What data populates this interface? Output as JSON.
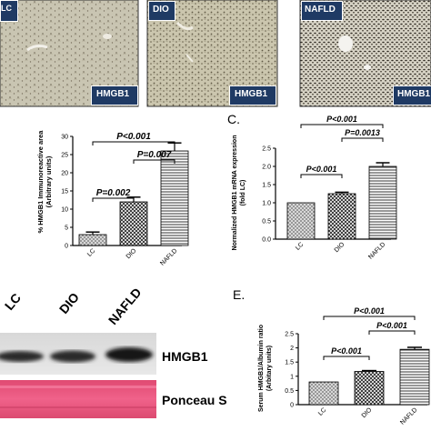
{
  "panel_a": {
    "images": [
      {
        "tag": "LC",
        "label": "HMGB1",
        "tissue": "#c9c5b2",
        "stain": "#6d6553"
      },
      {
        "tag": "DIO",
        "label": "HMGB1",
        "tissue": "#cbc6ae",
        "stain": "#5f5844"
      },
      {
        "tag": "NAFLD",
        "label": "HMGB1",
        "tissue": "#d6d2c4",
        "stain": "#2f2a22"
      }
    ]
  },
  "panel_b": {
    "letter": "",
    "ylabel_lines": [
      "% HMGB1 Immunoreactive area",
      "(Arbitrary units)"
    ],
    "sig": [
      "P<0.001",
      "P=0.007",
      "P=0.002"
    ]
  },
  "panel_c": {
    "letter": "C.",
    "ylabel_lines": [
      "Normalized HMGB1 mRNA expression",
      "(fold LC)"
    ],
    "sig": [
      "P<0.001",
      "P=0.0013",
      "P<0.001"
    ]
  },
  "panel_d": {
    "letter": "",
    "lanes": [
      "LC",
      "DIO",
      "NAFLD"
    ],
    "band_labels": [
      "HMGB1",
      "Ponceau S"
    ]
  },
  "panel_e": {
    "letter": "E.",
    "ylabel_lines": [
      "Serum HMGB1/Albumin ratio",
      "(Arbitary units)"
    ],
    "sig": [
      "P<0.001",
      "P<0.001",
      "P<0.001"
    ]
  },
  "chart_data": [
    {
      "type": "bar",
      "categories": [
        "LC",
        "DIO",
        "NAFLD"
      ],
      "values": [
        3,
        12,
        26
      ],
      "errors": [
        0.7,
        1.3,
        2.2
      ],
      "ylim": [
        0,
        30
      ],
      "yticks": [
        "0",
        "5",
        "10",
        "15",
        "20",
        "25",
        "30"
      ],
      "fills": [
        "dots",
        "grid",
        "hlines"
      ]
    },
    {
      "type": "bar",
      "categories": [
        "LC",
        "DIO",
        "NAFLD"
      ],
      "values": [
        1.0,
        1.25,
        2.0
      ],
      "errors": [
        0.0,
        0.04,
        0.1
      ],
      "ylim": [
        0,
        2.5
      ],
      "yticks": [
        "0.0",
        "0.5",
        "1.0",
        "1.5",
        "2.0",
        "2.5"
      ],
      "fills": [
        "dots",
        "grid",
        "hlines"
      ]
    },
    {
      "type": "bar",
      "categories": [
        "LC",
        "DIO",
        "NAFLD"
      ],
      "values": [
        0.8,
        1.17,
        1.95
      ],
      "errors": [
        0.0,
        0.03,
        0.07
      ],
      "ylim": [
        0,
        2.5
      ],
      "yticks": [
        "0",
        "0.5",
        "1",
        "1.5",
        "2",
        "2.5"
      ],
      "fills": [
        "dots",
        "grid",
        "hlines"
      ]
    }
  ]
}
